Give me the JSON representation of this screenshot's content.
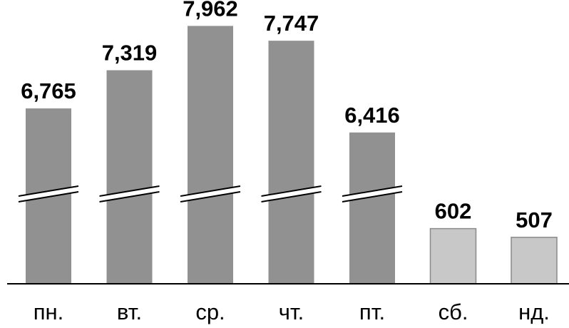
{
  "chart_data": {
    "type": "bar",
    "categories": [
      "пн.",
      "вт.",
      "ср.",
      "чт.",
      "пт.",
      "сб.",
      "нд."
    ],
    "values": [
      6765,
      7319,
      7962,
      7747,
      6416,
      602,
      507
    ],
    "value_labels": [
      "6,765",
      "7,319",
      "7,962",
      "7,747",
      "6,416",
      "602",
      "507"
    ],
    "broken_axis": true,
    "broken_bars": [
      true,
      true,
      true,
      true,
      true,
      false,
      false
    ],
    "bar_colors": [
      "#919191",
      "#919191",
      "#919191",
      "#919191",
      "#919191",
      "#c8c8c8",
      "#c8c8c8"
    ],
    "title": "",
    "xlabel": "",
    "ylabel": "",
    "grid": false
  }
}
